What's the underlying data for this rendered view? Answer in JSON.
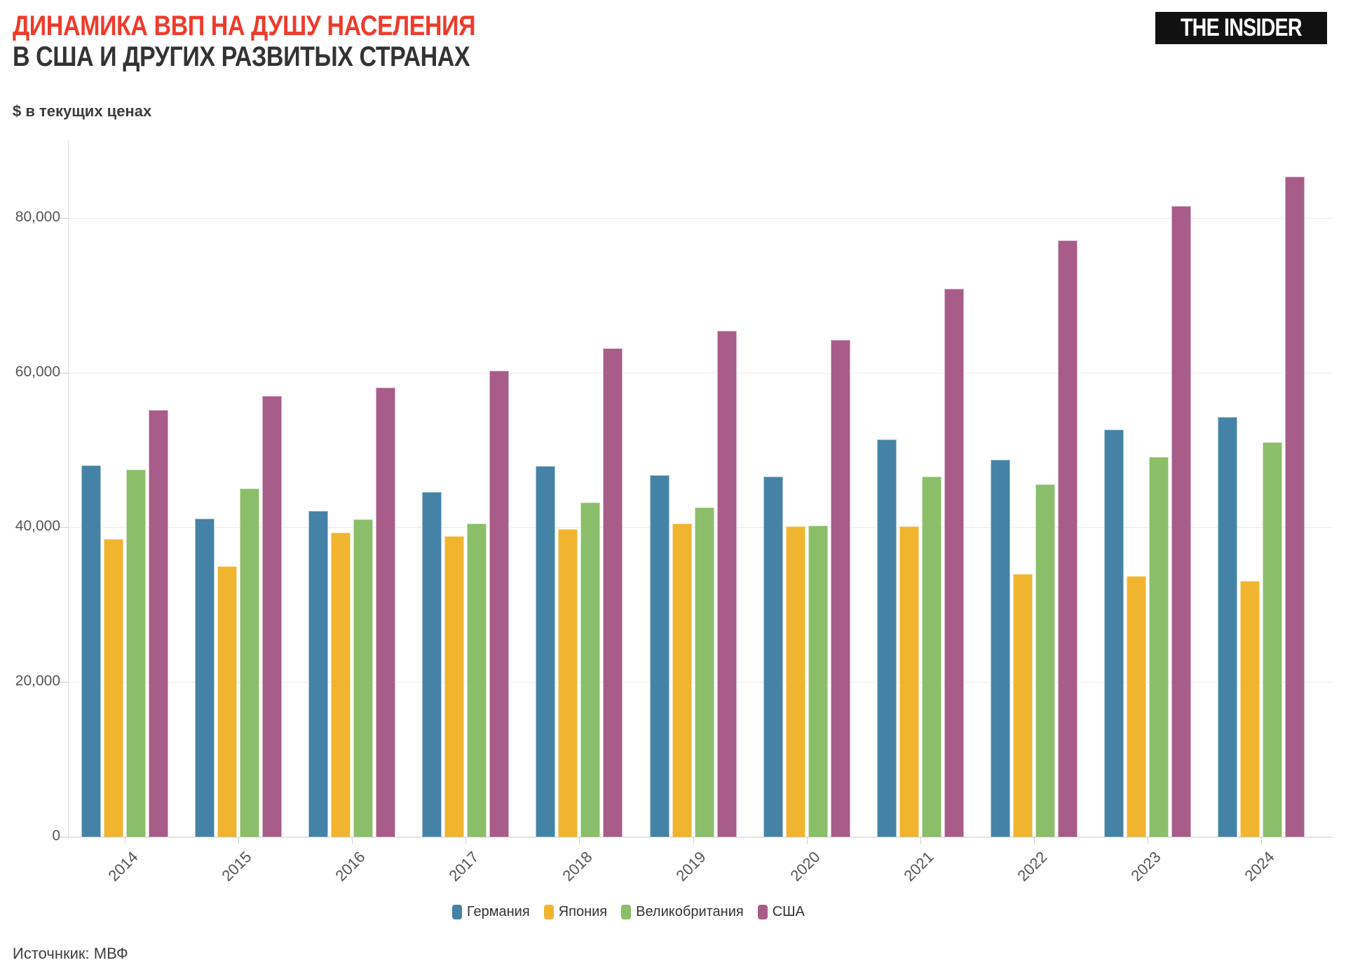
{
  "header": {
    "title_line1": "ДИНАМИКА ВВП НА ДУШУ НАСЕЛЕНИЯ",
    "title_line2": "В США И ДРУГИХ РАЗВИТЫХ СТРАНАХ",
    "title_accent_color": "#EE3B2C",
    "title_dark_color": "#333333",
    "logo_text": "THE INSIDER",
    "units_label": "$ в текущих ценах"
  },
  "source_note": "Источнкик: МВФ",
  "chart_data": {
    "type": "bar",
    "title": "Динамика ВВП на душу населения в США и других развитых странах",
    "ylabel": "$ в текущих ценах",
    "xlabel": "",
    "grid": true,
    "legend_position": "bottom",
    "ylim": [
      0,
      90000
    ],
    "yticks": [
      0,
      20000,
      40000,
      60000,
      80000
    ],
    "ytick_labels": [
      "0",
      "20,000",
      "40,000",
      "60,000",
      "80,000"
    ],
    "categories": [
      "2014",
      "2015",
      "2016",
      "2017",
      "2018",
      "2019",
      "2020",
      "2021",
      "2022",
      "2023",
      "2024"
    ],
    "series": [
      {
        "name": "Германия",
        "key": "germany",
        "color": "#4583A6",
        "values": [
          48000,
          41100,
          42100,
          44600,
          47900,
          46700,
          46600,
          51400,
          48700,
          52600,
          54300
        ]
      },
      {
        "name": "Япония",
        "key": "japan",
        "color": "#F0B42F",
        "values": [
          38500,
          35000,
          39300,
          38900,
          39800,
          40500,
          40100,
          40100,
          34000,
          33700,
          33100
        ]
      },
      {
        "name": "Великобритания",
        "key": "uk",
        "color": "#8BBE69",
        "values": [
          47500,
          45000,
          41000,
          40500,
          43200,
          42600,
          40200,
          46600,
          45600,
          49100,
          51000
        ]
      },
      {
        "name": "США",
        "key": "usa",
        "color": "#A85C88",
        "values": [
          55200,
          57000,
          58100,
          60200,
          63100,
          65400,
          64200,
          70800,
          77100,
          81500,
          85300
        ]
      }
    ]
  }
}
